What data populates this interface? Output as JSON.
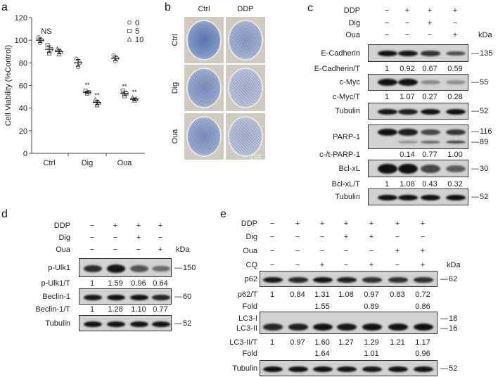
{
  "panel_labels": {
    "a": "a",
    "b": "b",
    "c": "c",
    "d": "d",
    "e": "e"
  },
  "chart_data": {
    "type": "scatter",
    "title": "",
    "xlabel": "",
    "ylabel": "Cell Viability (%Control)",
    "ylim": [
      0,
      120
    ],
    "yticks": [
      "0",
      "20",
      "40",
      "60",
      "80",
      "100",
      "120"
    ],
    "categories": [
      "Ctrl",
      "Dig",
      "Oua"
    ],
    "legend_placement": "top-right",
    "series": [
      {
        "name": "0",
        "marker": "circle",
        "values": [
          100,
          80,
          84
        ],
        "sd": [
          2,
          3,
          2
        ]
      },
      {
        "name": "5",
        "marker": "square",
        "values": [
          92,
          54,
          53
        ],
        "sd": [
          3,
          1,
          2
        ]
      },
      {
        "name": "10",
        "marker": "triangle",
        "values": [
          90,
          45,
          48
        ],
        "sd": [
          2,
          2,
          1
        ]
      }
    ],
    "annotations": [
      {
        "category": "Ctrl",
        "series": "0",
        "text": "NS"
      },
      {
        "category": "Dig",
        "series": "5",
        "text": "**"
      },
      {
        "category": "Dig",
        "series": "10",
        "text": "**"
      },
      {
        "category": "Oua",
        "series": "5",
        "text": "**"
      },
      {
        "category": "Oua",
        "series": "10",
        "text": "**"
      }
    ]
  },
  "panel_b": {
    "col_headers": [
      "Ctrl",
      "DDP"
    ],
    "row_headers": [
      "Ctrl",
      "Dig",
      "Oua"
    ],
    "scale_bar": "1 cm"
  },
  "panel_c": {
    "kda_label": "kDa",
    "treatments": [
      {
        "label": "DDP",
        "values": [
          "−",
          "+",
          "+",
          "+"
        ]
      },
      {
        "label": "Dig",
        "values": [
          "−",
          "−",
          "+",
          "−"
        ]
      },
      {
        "label": "Oua",
        "values": [
          "−",
          "−",
          "−",
          "+"
        ]
      }
    ],
    "rows": [
      {
        "label": "E-Cadherin",
        "markers": [
          "135"
        ]
      },
      {
        "label": "E-Cadherin/T",
        "values": [
          "1",
          "0.92",
          "0.67",
          "0.59"
        ]
      },
      {
        "label": "c-Myc",
        "markers": [
          "55"
        ]
      },
      {
        "label": "c-Myc/T",
        "values": [
          "1",
          "1.07",
          "0.27",
          "0.28"
        ]
      },
      {
        "label": "Tubulin",
        "markers": [
          "52"
        ]
      },
      {
        "label": "PARP-1",
        "markers": [
          "116",
          "89"
        ]
      },
      {
        "label": "c-/t-PARP-1",
        "values": [
          "",
          "0.14",
          "0.77",
          "1.00"
        ]
      },
      {
        "label": "Bcl-xL",
        "markers": [
          "30"
        ]
      },
      {
        "label": "Bcl-xL/T",
        "values": [
          "1",
          "1.08",
          "0.43",
          "0.32"
        ]
      },
      {
        "label": "Tubulin",
        "markers": [
          "52"
        ]
      }
    ]
  },
  "panel_d": {
    "kda_label": "kDa",
    "treatments": [
      {
        "label": "DDP",
        "values": [
          "−",
          "+",
          "+",
          "+"
        ]
      },
      {
        "label": "Dig",
        "values": [
          "−",
          "−",
          "+",
          "−"
        ]
      },
      {
        "label": "Oua",
        "values": [
          "−",
          "−",
          "−",
          "+"
        ]
      }
    ],
    "rows": [
      {
        "label": "p-Ulk1",
        "markers": [
          "150"
        ]
      },
      {
        "label": "p-Ulk1/T",
        "values": [
          "1",
          "1.59",
          "0.96",
          "0.64"
        ]
      },
      {
        "label": "Beclin-1",
        "markers": [
          "60"
        ]
      },
      {
        "label": "Beclin-1/T",
        "values": [
          "1",
          "1.28",
          "1.10",
          "0.77"
        ]
      },
      {
        "label": "Tubulin",
        "markers": [
          "52"
        ]
      }
    ]
  },
  "panel_e": {
    "kda_label": "kDa",
    "treatments": [
      {
        "label": "DDP",
        "values": [
          "−",
          "+",
          "+",
          "+",
          "+",
          "+",
          "+"
        ]
      },
      {
        "label": "Dig",
        "values": [
          "−",
          "−",
          "−",
          "+",
          "+",
          "−",
          "−"
        ]
      },
      {
        "label": "Oua",
        "values": [
          "−",
          "−",
          "−",
          "−",
          "−",
          "+",
          "+"
        ]
      },
      {
        "label": "CQ",
        "values": [
          "−",
          "−",
          "+",
          "−",
          "+",
          "−",
          "+"
        ]
      }
    ],
    "rows": [
      {
        "label": "p62",
        "markers": [
          "62"
        ]
      },
      {
        "label": "p62/T",
        "values": [
          "1",
          "0.84",
          "1.31",
          "1.08",
          "0.97",
          "0.83",
          "0.72"
        ]
      },
      {
        "label": "Fold",
        "values": [
          "",
          "",
          "1.55",
          "",
          "0.89",
          "",
          "0.86"
        ]
      },
      {
        "label": "LC3-I",
        "label2": "LC3-II",
        "markers": [
          "18",
          "16"
        ]
      },
      {
        "label": "LC3-II/T",
        "values": [
          "1",
          "0.97",
          "1.60",
          "1.27",
          "1.29",
          "1.21",
          "1.17"
        ]
      },
      {
        "label": "Fold",
        "values": [
          "",
          "",
          "1.64",
          "",
          "1.01",
          "",
          "0.96"
        ]
      },
      {
        "label": "Tubulin",
        "markers": [
          "52"
        ]
      }
    ]
  }
}
